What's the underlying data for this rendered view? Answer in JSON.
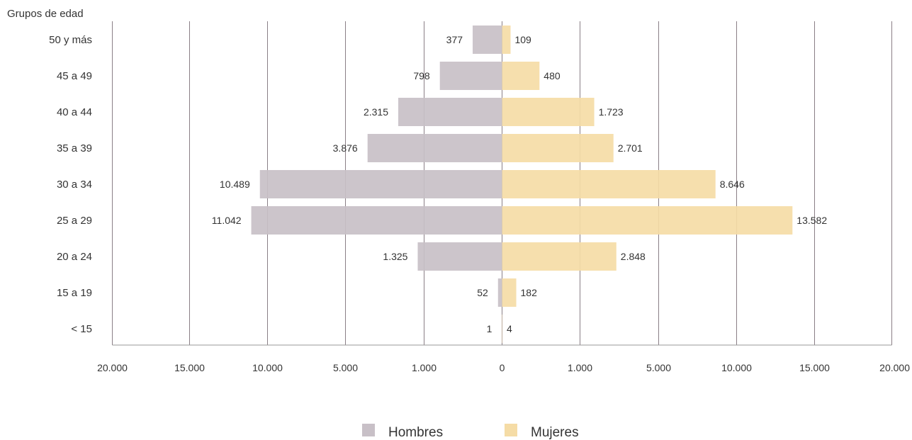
{
  "chart_data": {
    "type": "bar",
    "orientation": "horizontal-population-pyramid",
    "ylabel": "Grupos de edad",
    "categories": [
      "50 y más",
      "45 a 49",
      "40 a 44",
      "35 a 39",
      "30 a 34",
      "25 a 29",
      "20 a 24",
      "15 a 19",
      "< 15"
    ],
    "series": [
      {
        "name": "Hombres",
        "color": "#c8c0c7",
        "values": [
          377,
          798,
          2315,
          3876,
          10489,
          11042,
          1325,
          52,
          1
        ],
        "labels": [
          "377",
          "798",
          "2.315",
          "3.876",
          "10.489",
          "11.042",
          "1.325",
          "52",
          "1"
        ]
      },
      {
        "name": "Mujeres",
        "color": "#f5dca6",
        "values": [
          109,
          480,
          1723,
          2701,
          8646,
          13582,
          2848,
          182,
          4
        ],
        "labels": [
          "109",
          "480",
          "1.723",
          "2.701",
          "8.646",
          "13.582",
          "2.848",
          "182",
          "4"
        ]
      }
    ],
    "x_ticks": [
      "20.000",
      "15.000",
      "10.000",
      "5.000",
      "1.000",
      "0",
      "1.000",
      "5.000",
      "10.000",
      "15.000",
      "20.000"
    ],
    "x_tick_values": [
      20000,
      15000,
      10000,
      5000,
      1000,
      0,
      1000,
      5000,
      10000,
      15000,
      20000
    ],
    "xlim": [
      0,
      20000
    ],
    "grid": true,
    "legend_position": "bottom-center",
    "gridline_color": "#8a7f86",
    "axis_color": "#999999"
  }
}
